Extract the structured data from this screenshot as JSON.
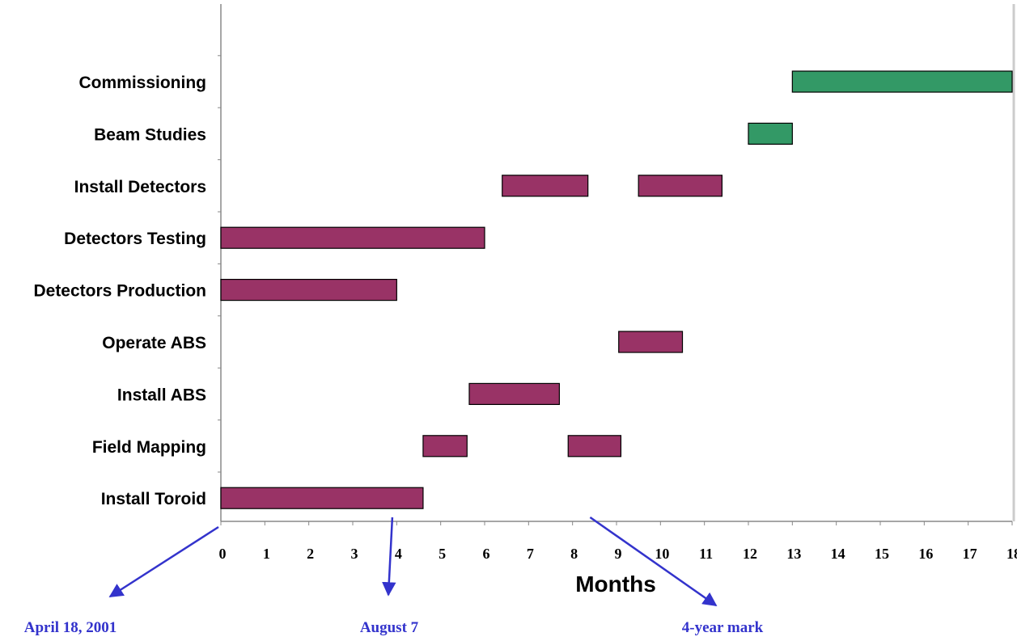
{
  "chart_data": {
    "type": "gantt",
    "xlabel": "Months",
    "xlim": [
      0,
      18
    ],
    "xticks": [
      0,
      1,
      2,
      3,
      4,
      5,
      6,
      7,
      8,
      9,
      10,
      11,
      12,
      13,
      14,
      15,
      16,
      17,
      18
    ],
    "grid": false,
    "categories": [
      "Commissioning",
      "Beam Studies",
      "Install Detectors",
      "Detectors Testing",
      "Detectors Production",
      "Operate ABS",
      "Install ABS",
      "Field Mapping",
      "Install Toroid"
    ],
    "series": [
      {
        "color": "#993366",
        "tasks": [
          {
            "category": "Install Detectors",
            "start": 6.4,
            "end": 8.35
          },
          {
            "category": "Install Detectors",
            "start": 9.5,
            "end": 11.4
          },
          {
            "category": "Detectors Testing",
            "start": 0,
            "end": 6.0
          },
          {
            "category": "Detectors Production",
            "start": 0,
            "end": 4.0
          },
          {
            "category": "Operate ABS",
            "start": 9.05,
            "end": 10.5
          },
          {
            "category": "Install ABS",
            "start": 5.65,
            "end": 7.7
          },
          {
            "category": "Field Mapping",
            "start": 4.6,
            "end": 5.6
          },
          {
            "category": "Field Mapping",
            "start": 7.9,
            "end": 9.1
          },
          {
            "category": "Install Toroid",
            "start": 0,
            "end": 4.6
          }
        ]
      },
      {
        "color": "#339966",
        "tasks": [
          {
            "category": "Commissioning",
            "start": 13.0,
            "end": 18.0
          },
          {
            "category": "Beam Studies",
            "start": 12.0,
            "end": 13.0
          }
        ]
      }
    ],
    "annotations": [
      {
        "text": "April 18, 2001",
        "month": 0,
        "color": "#3333cc"
      },
      {
        "text": "August 7",
        "month": 3.9,
        "color": "#3333cc"
      },
      {
        "text": "4-year mark",
        "month": 8.4,
        "color": "#3333cc"
      }
    ]
  }
}
